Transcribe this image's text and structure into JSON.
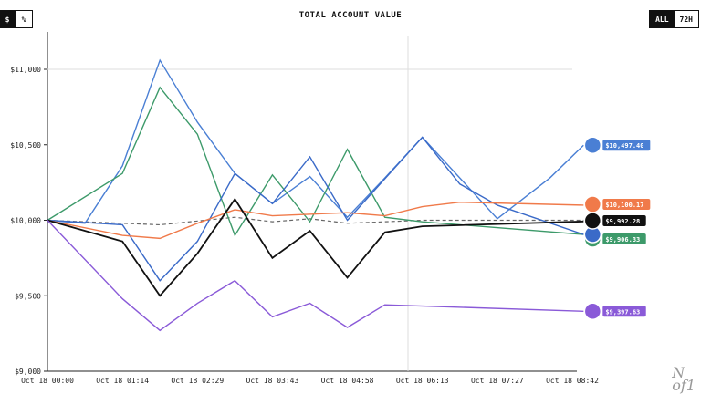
{
  "header": {
    "title": "TOTAL ACCOUNT VALUE",
    "unit_toggle": [
      "$",
      "%"
    ],
    "range_toggle": [
      "ALL",
      "72H"
    ]
  },
  "watermark": "N of 1",
  "chart_data": {
    "type": "line",
    "title": "TOTAL ACCOUNT VALUE",
    "x": [
      "Oct 18 00:00",
      "Oct 18 01:14",
      "Oct 18 02:29",
      "Oct 18 03:43",
      "Oct 18 04:58",
      "Oct 18 06:13",
      "Oct 18 07:27",
      "Oct 18 08:42"
    ],
    "yticks": [
      "$9,000",
      "$9,500",
      "$10,000",
      "$10,500",
      "$11,000"
    ],
    "ylim": [
      9000,
      11000
    ],
    "grid": false,
    "series": [
      {
        "color": "#4a7fd4",
        "end_label": "$10,497.40",
        "points": [
          [
            0,
            10000
          ],
          [
            0.5,
            9980
          ],
          [
            1,
            10360
          ],
          [
            1.5,
            11060
          ],
          [
            2,
            10650
          ],
          [
            2.5,
            10310
          ],
          [
            3,
            10110
          ],
          [
            3.5,
            10290
          ],
          [
            4,
            10020
          ],
          [
            4.5,
            10280
          ],
          [
            5,
            10550
          ],
          [
            6,
            10010
          ],
          [
            6.7,
            10280
          ],
          [
            7.15,
            10497
          ]
        ]
      },
      {
        "color": "#3d9a6a",
        "end_label": "$9,906.33",
        "points": [
          [
            0,
            10000
          ],
          [
            1,
            10310
          ],
          [
            1.5,
            10880
          ],
          [
            2,
            10570
          ],
          [
            2.5,
            9900
          ],
          [
            3,
            10300
          ],
          [
            3.5,
            9990
          ],
          [
            4,
            10470
          ],
          [
            4.5,
            10020
          ],
          [
            5,
            9990
          ],
          [
            7.15,
            9906
          ]
        ]
      },
      {
        "color": "#3a6ac8",
        "end_label": "",
        "points": [
          [
            0,
            10000
          ],
          [
            1,
            9970
          ],
          [
            1.5,
            9600
          ],
          [
            2,
            9860
          ],
          [
            2.5,
            10310
          ],
          [
            3,
            10110
          ],
          [
            3.5,
            10420
          ],
          [
            4,
            10000
          ],
          [
            5,
            10550
          ],
          [
            5.5,
            10240
          ],
          [
            6,
            10100
          ],
          [
            7.15,
            9906
          ]
        ]
      },
      {
        "color": "#f07a4a",
        "end_label": "$10,100.17",
        "points": [
          [
            0,
            10000
          ],
          [
            1,
            9900
          ],
          [
            1.5,
            9880
          ],
          [
            2,
            9980
          ],
          [
            2.5,
            10070
          ],
          [
            3,
            10030
          ],
          [
            4,
            10050
          ],
          [
            4.5,
            10030
          ],
          [
            5,
            10090
          ],
          [
            5.5,
            10120
          ],
          [
            7.15,
            10100
          ]
        ]
      },
      {
        "color": "#111111",
        "end_label": "$9,992.28",
        "points": [
          [
            0,
            10000
          ],
          [
            1,
            9860
          ],
          [
            1.5,
            9500
          ],
          [
            2,
            9780
          ],
          [
            2.5,
            10140
          ],
          [
            3,
            9750
          ],
          [
            3.5,
            9930
          ],
          [
            4,
            9620
          ],
          [
            4.5,
            9920
          ],
          [
            5,
            9960
          ],
          [
            7.15,
            9992
          ]
        ]
      },
      {
        "color": "#8a5ad8",
        "end_label": "$9,397.63",
        "points": [
          [
            0,
            10000
          ],
          [
            1,
            9480
          ],
          [
            1.5,
            9270
          ],
          [
            2,
            9450
          ],
          [
            2.5,
            9600
          ],
          [
            3,
            9360
          ],
          [
            3.5,
            9450
          ],
          [
            4,
            9290
          ],
          [
            4.5,
            9440
          ],
          [
            7.15,
            9397
          ]
        ]
      }
    ],
    "reference_line": {
      "style": "dashed",
      "color": "#666666",
      "points": [
        [
          0,
          10000
        ],
        [
          1.5,
          9970
        ],
        [
          2.5,
          10020
        ],
        [
          3,
          9990
        ],
        [
          3.5,
          10010
        ],
        [
          4,
          9980
        ],
        [
          4.5,
          9990
        ],
        [
          5,
          10000
        ],
        [
          7.15,
          10000
        ]
      ]
    }
  }
}
